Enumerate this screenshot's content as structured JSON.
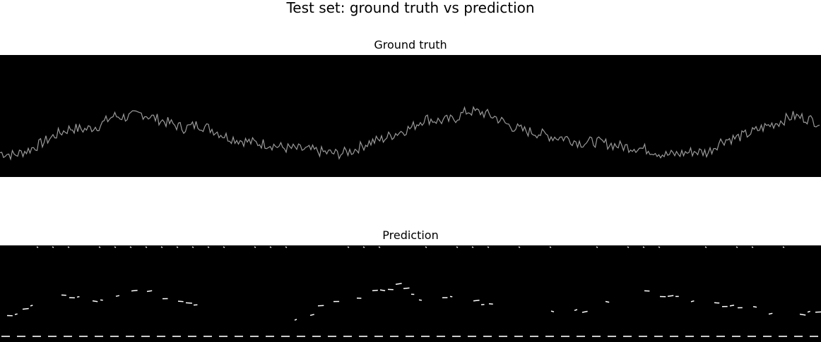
{
  "figure": {
    "title": "Test set: ground truth vs prediction"
  },
  "colors": {
    "background": "#000000",
    "ground_truth_trace": "#9a9a9a",
    "prediction_marks": "#ffffff"
  },
  "chart_data": [
    {
      "type": "line",
      "title": "Ground truth",
      "xlabel": "",
      "ylabel": "",
      "axes_visible": false,
      "grid": false,
      "x": [
        0,
        20,
        40,
        60,
        80,
        100,
        120,
        140,
        160,
        180,
        200,
        220,
        240,
        260,
        280,
        300,
        320,
        340,
        360,
        380,
        400,
        420,
        440,
        460,
        480,
        500,
        520,
        540,
        560,
        580,
        600,
        620,
        640,
        660,
        680,
        700,
        720,
        740,
        760,
        780,
        800,
        820,
        840,
        860,
        880,
        900,
        920,
        940,
        960,
        980,
        1000,
        1020,
        1040,
        1060,
        1080,
        1100,
        1120,
        1140,
        1160
      ],
      "series": [
        {
          "values": [
            0.2,
            0.18,
            0.22,
            0.28,
            0.35,
            0.4,
            0.39,
            0.42,
            0.5,
            0.49,
            0.52,
            0.48,
            0.44,
            0.4,
            0.43,
            0.39,
            0.33,
            0.3,
            0.28,
            0.27,
            0.24,
            0.23,
            0.22,
            0.2,
            0.19,
            0.22,
            0.28,
            0.31,
            0.36,
            0.4,
            0.48,
            0.46,
            0.47,
            0.54,
            0.53,
            0.49,
            0.42,
            0.38,
            0.36,
            0.33,
            0.32,
            0.28,
            0.29,
            0.27,
            0.25,
            0.24,
            0.22,
            0.18,
            0.19,
            0.21,
            0.2,
            0.3,
            0.32,
            0.36,
            0.41,
            0.45,
            0.5,
            0.48,
            0.44
          ]
        }
      ]
    },
    {
      "type": "scatter",
      "title": "Prediction",
      "xlabel": "",
      "ylabel": "",
      "axes_visible": false,
      "grid": false,
      "x": [
        0,
        20,
        40,
        60,
        80,
        100,
        120,
        140,
        160,
        180,
        200,
        220,
        240,
        260,
        280,
        300,
        320,
        340,
        360,
        380,
        400,
        420,
        440,
        460,
        480,
        500,
        520,
        540,
        560,
        580,
        600,
        620,
        640,
        660,
        680,
        700,
        720,
        740,
        760,
        780,
        800,
        820,
        840,
        860,
        880,
        900,
        920,
        940,
        960,
        980,
        1000,
        1020,
        1040,
        1060,
        1080,
        1100,
        1120,
        1140,
        1160
      ],
      "series": [
        {
          "values": [
            0.2,
            0.18,
            0.28,
            0.4,
            0.42,
            0.4,
            0.32,
            0.38,
            0.41,
            0.43,
            0.44,
            0.4,
            0.35,
            0.33,
            0.34,
            0.24,
            0.2,
            0.22,
            0.18,
            0.17,
            0.16,
            0.18,
            0.22,
            0.36,
            0.38,
            0.4,
            0.44,
            0.47,
            0.5,
            0.41,
            0.38,
            0.36,
            0.4,
            0.35,
            0.34,
            0.31,
            0.28,
            0.26,
            0.24,
            0.22,
            0.2,
            0.26,
            0.28,
            0.36,
            0.42,
            0.45,
            0.44,
            0.4,
            0.36,
            0.34,
            0.33,
            0.32,
            0.3,
            0.28,
            0.24,
            0.22,
            0.2,
            0.21,
            0.23
          ]
        }
      ]
    }
  ]
}
